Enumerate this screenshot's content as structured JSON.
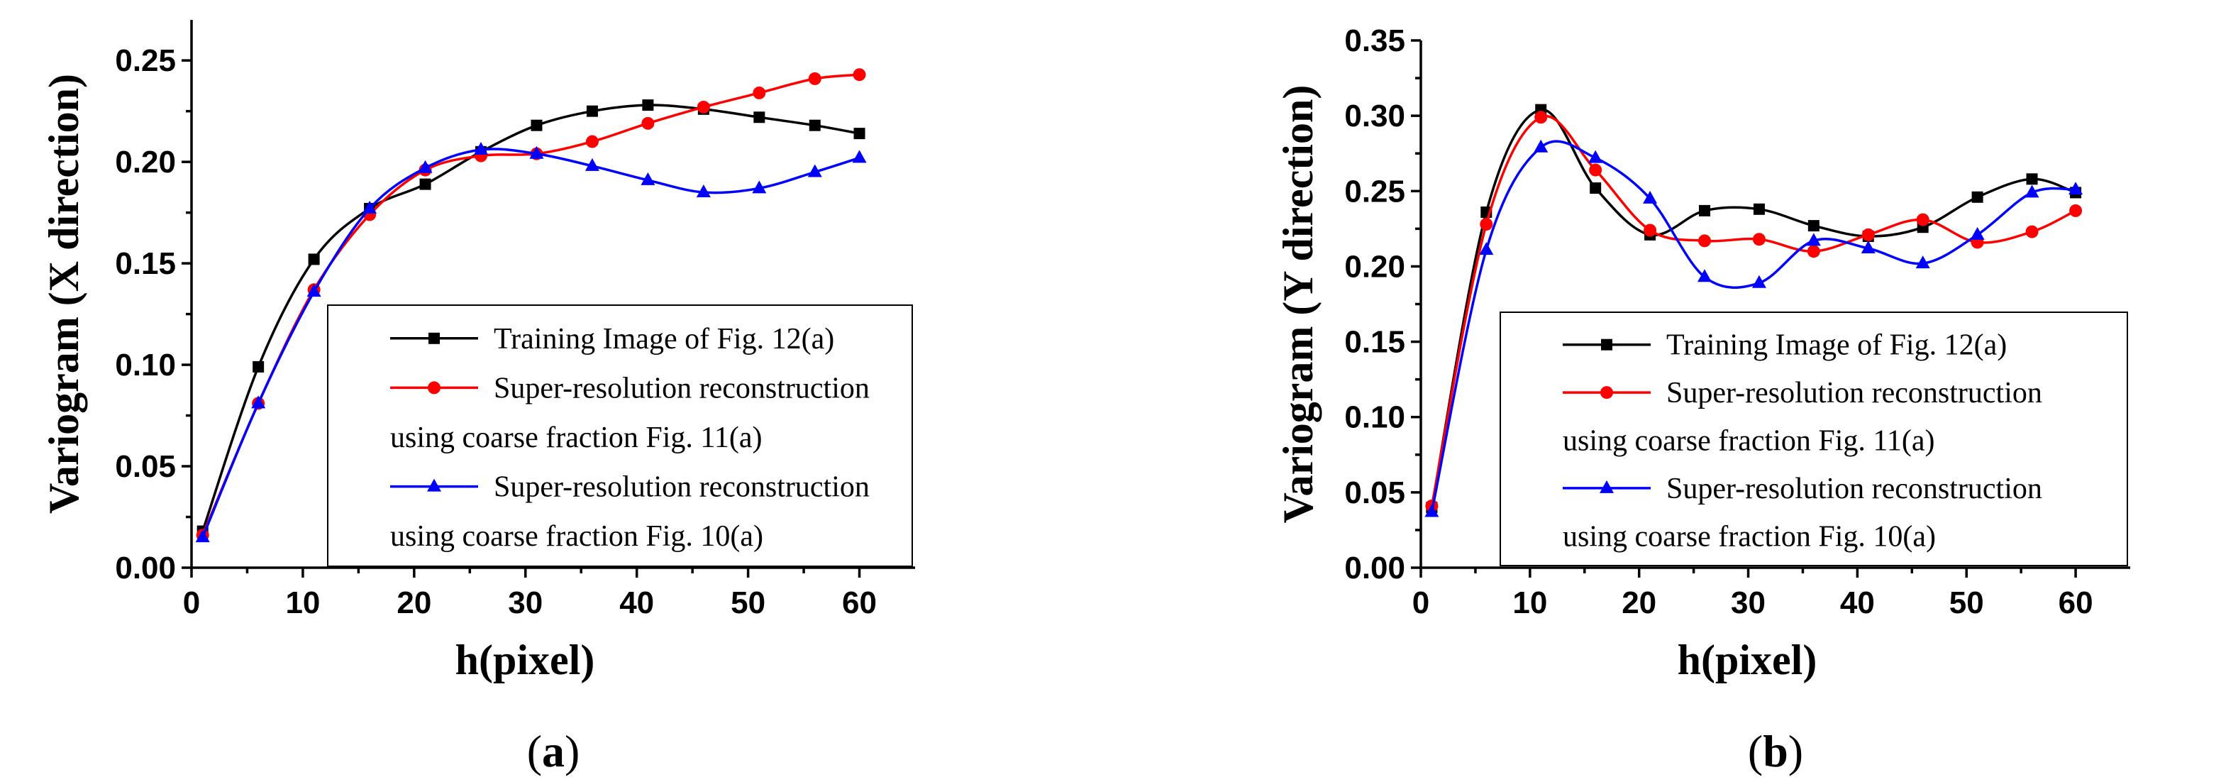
{
  "chart_data": [
    {
      "type": "line",
      "panel_label": "a",
      "xlabel": "h(pixel)",
      "ylabel": "Variogram (X direction)",
      "xlim": [
        0,
        65
      ],
      "ylim": [
        0,
        0.27
      ],
      "x_ticks": [
        "0",
        "10",
        "20",
        "30",
        "40",
        "50",
        "60"
      ],
      "y_ticks": [
        "0.00",
        "0.05",
        "0.10",
        "0.15",
        "0.20",
        "0.25"
      ],
      "legend_placement": "lower-right",
      "series": [
        {
          "name": "Training Image of Fig. 12(a)",
          "legend_lines": [
            "Training Image of Fig. 12(a)"
          ],
          "color": "#000000",
          "marker": "square",
          "x": [
            1,
            6,
            11,
            16,
            21,
            26,
            31,
            36,
            41,
            46,
            51,
            56,
            60
          ],
          "y": [
            0.018,
            0.099,
            0.152,
            0.177,
            0.189,
            0.205,
            0.218,
            0.225,
            0.228,
            0.226,
            0.222,
            0.218,
            0.214
          ]
        },
        {
          "name": "Super-resolution reconstruction using coarse fraction Fig. 11(a)",
          "legend_lines": [
            "Super-resolution reconstruction",
            "using coarse fraction Fig. 11(a)"
          ],
          "color": "#ff0000",
          "marker": "circle",
          "x": [
            1,
            6,
            11,
            16,
            21,
            26,
            31,
            36,
            41,
            46,
            51,
            56,
            60
          ],
          "y": [
            0.016,
            0.081,
            0.137,
            0.174,
            0.196,
            0.203,
            0.204,
            0.21,
            0.219,
            0.227,
            0.234,
            0.241,
            0.243
          ]
        },
        {
          "name": "Super-resolution reconstruction using coarse fraction Fig. 10(a)",
          "legend_lines": [
            "Super-resolution reconstruction",
            "using coarse fraction Fig. 10(a)"
          ],
          "color": "#0000ff",
          "marker": "triangle",
          "x": [
            1,
            6,
            11,
            16,
            21,
            26,
            31,
            36,
            41,
            46,
            51,
            56,
            60
          ],
          "y": [
            0.015,
            0.081,
            0.136,
            0.177,
            0.197,
            0.206,
            0.204,
            0.198,
            0.191,
            0.185,
            0.187,
            0.195,
            0.202
          ]
        }
      ]
    },
    {
      "type": "line",
      "panel_label": "b",
      "xlabel": "h(pixel)",
      "ylabel": "Variogram (Y direction)",
      "xlim": [
        0,
        65
      ],
      "ylim": [
        0,
        0.35
      ],
      "x_ticks": [
        "0",
        "10",
        "20",
        "30",
        "40",
        "50",
        "60"
      ],
      "y_ticks": [
        "0.00",
        "0.05",
        "0.10",
        "0.15",
        "0.20",
        "0.25",
        "0.30",
        "0.35"
      ],
      "legend_placement": "lower-right",
      "series": [
        {
          "name": "Training Image of Fig. 12(a)",
          "legend_lines": [
            "Training Image of Fig. 12(a)"
          ],
          "color": "#000000",
          "marker": "square",
          "x": [
            1,
            6,
            11,
            16,
            21,
            26,
            31,
            36,
            41,
            46,
            51,
            56,
            60
          ],
          "y": [
            0.04,
            0.236,
            0.304,
            0.252,
            0.221,
            0.237,
            0.238,
            0.227,
            0.22,
            0.226,
            0.246,
            0.258,
            0.249
          ]
        },
        {
          "name": "Super-resolution reconstruction using coarse fraction Fig. 11(a)",
          "legend_lines": [
            "Super-resolution reconstruction",
            "using coarse fraction Fig. 11(a)"
          ],
          "color": "#ff0000",
          "marker": "circle",
          "x": [
            1,
            6,
            11,
            16,
            21,
            26,
            31,
            36,
            41,
            46,
            51,
            56,
            60
          ],
          "y": [
            0.041,
            0.228,
            0.299,
            0.264,
            0.224,
            0.217,
            0.218,
            0.21,
            0.221,
            0.231,
            0.216,
            0.223,
            0.237
          ]
        },
        {
          "name": "Super-resolution reconstruction using coarse fraction Fig. 10(a)",
          "legend_lines": [
            "Super-resolution reconstruction",
            "using coarse fraction Fig. 10(a)"
          ],
          "color": "#0000ff",
          "marker": "triangle",
          "x": [
            1,
            6,
            11,
            16,
            21,
            26,
            31,
            36,
            41,
            46,
            51,
            56,
            60
          ],
          "y": [
            0.037,
            0.211,
            0.279,
            0.272,
            0.245,
            0.193,
            0.189,
            0.217,
            0.212,
            0.202,
            0.221,
            0.249,
            0.251
          ]
        }
      ]
    }
  ]
}
